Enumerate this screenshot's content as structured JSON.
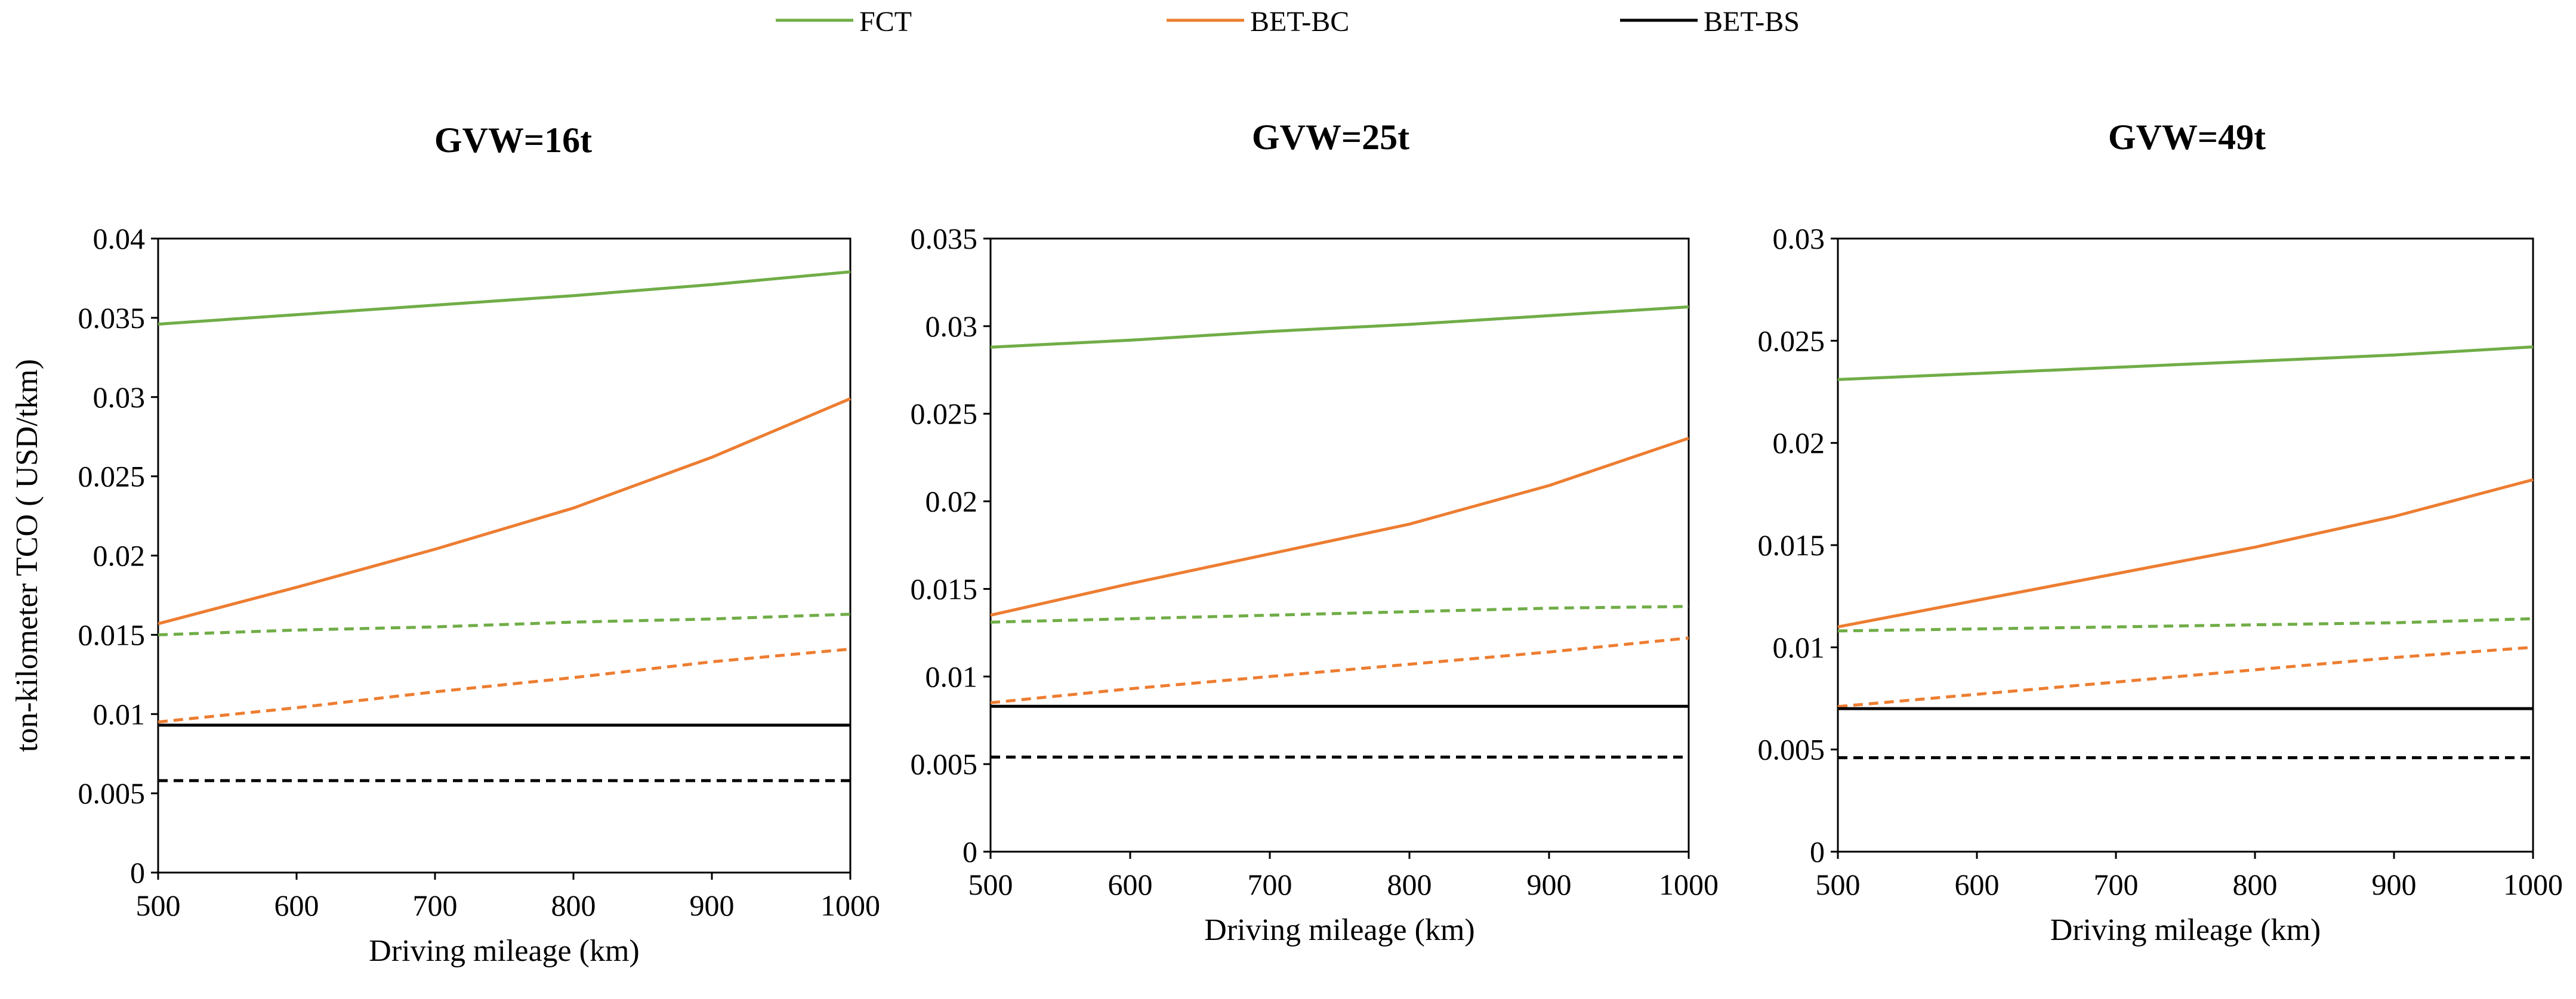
{
  "legend": [
    {
      "name": "FCT",
      "color": "#70ad47"
    },
    {
      "name": "BET-BC",
      "color": "#ed7d31"
    },
    {
      "name": "BET-BS",
      "color": "#000000"
    }
  ],
  "chart_data": [
    {
      "type": "line",
      "title": "GVW=16t",
      "xlabel": "Driving mileage (km)",
      "ylabel": "ton-kilometer TCO ( USD/tkm)",
      "xlim": [
        500,
        1000
      ],
      "ylim": [
        0,
        0.04
      ],
      "x_ticks": [
        "500",
        "600",
        "700",
        "800",
        "900",
        "1000"
      ],
      "y_ticks": [
        "0",
        "0.005",
        "0.01",
        "0.015",
        "0.02",
        "0.025",
        "0.03",
        "0.035",
        "0.04"
      ],
      "x": [
        500,
        600,
        700,
        800,
        900,
        1000
      ],
      "series": [
        {
          "name": "FCT",
          "style": "solid",
          "color": "#70ad47",
          "values": [
            0.0346,
            0.0352,
            0.0358,
            0.0364,
            0.0371,
            0.0379
          ]
        },
        {
          "name": "BET-BC",
          "style": "solid",
          "color": "#ed7d31",
          "values": [
            0.0157,
            0.018,
            0.0204,
            0.023,
            0.0262,
            0.0299
          ]
        },
        {
          "name": "BET-BS",
          "style": "solid",
          "color": "#000000",
          "values": [
            0.0093,
            0.0093,
            0.0093,
            0.0093,
            0.0093,
            0.0093
          ]
        },
        {
          "name": "FCT",
          "style": "dashed",
          "color": "#70ad47",
          "values": [
            0.015,
            0.0153,
            0.0155,
            0.0158,
            0.016,
            0.0163
          ]
        },
        {
          "name": "BET-BC",
          "style": "dashed",
          "color": "#ed7d31",
          "values": [
            0.0095,
            0.0104,
            0.0114,
            0.0123,
            0.0133,
            0.0141
          ]
        },
        {
          "name": "BET-BS",
          "style": "dashed",
          "color": "#000000",
          "values": [
            0.0058,
            0.0058,
            0.0058,
            0.0058,
            0.0058,
            0.0058
          ]
        }
      ]
    },
    {
      "type": "line",
      "title": "GVW=25t",
      "xlabel": "Driving mileage (km)",
      "ylabel": "",
      "xlim": [
        500,
        1000
      ],
      "ylim": [
        0,
        0.035
      ],
      "x_ticks": [
        "500",
        "600",
        "700",
        "800",
        "900",
        "1000"
      ],
      "y_ticks": [
        "0",
        "0.005",
        "0.01",
        "0.015",
        "0.02",
        "0.025",
        "0.03",
        "0.035"
      ],
      "x": [
        500,
        600,
        700,
        800,
        900,
        1000
      ],
      "series": [
        {
          "name": "FCT",
          "style": "solid",
          "color": "#70ad47",
          "values": [
            0.0288,
            0.0292,
            0.0297,
            0.0301,
            0.0306,
            0.0311
          ]
        },
        {
          "name": "BET-BC",
          "style": "solid",
          "color": "#ed7d31",
          "values": [
            0.0135,
            0.0153,
            0.017,
            0.0187,
            0.0209,
            0.0236
          ]
        },
        {
          "name": "BET-BS",
          "style": "solid",
          "color": "#000000",
          "values": [
            0.0083,
            0.0083,
            0.0083,
            0.0083,
            0.0083,
            0.0083
          ]
        },
        {
          "name": "FCT",
          "style": "dashed",
          "color": "#70ad47",
          "values": [
            0.0131,
            0.0133,
            0.0135,
            0.0137,
            0.0139,
            0.014
          ]
        },
        {
          "name": "BET-BC",
          "style": "dashed",
          "color": "#ed7d31",
          "values": [
            0.0085,
            0.0093,
            0.01,
            0.0107,
            0.0114,
            0.0122
          ]
        },
        {
          "name": "BET-BS",
          "style": "dashed",
          "color": "#000000",
          "values": [
            0.0054,
            0.0054,
            0.0054,
            0.0054,
            0.0054,
            0.0054
          ]
        }
      ]
    },
    {
      "type": "line",
      "title": "GVW=49t",
      "xlabel": "Driving mileage (km)",
      "ylabel": "",
      "xlim": [
        500,
        1000
      ],
      "ylim": [
        0,
        0.03
      ],
      "x_ticks": [
        "500",
        "600",
        "700",
        "800",
        "900",
        "1000"
      ],
      "y_ticks": [
        "0",
        "0.005",
        "0.01",
        "0.015",
        "0.02",
        "0.025",
        "0.03"
      ],
      "x": [
        500,
        600,
        700,
        800,
        900,
        1000
      ],
      "series": [
        {
          "name": "FCT",
          "style": "solid",
          "color": "#70ad47",
          "values": [
            0.0231,
            0.0234,
            0.0237,
            0.024,
            0.0243,
            0.0247
          ]
        },
        {
          "name": "BET-BC",
          "style": "solid",
          "color": "#ed7d31",
          "values": [
            0.011,
            0.0123,
            0.0136,
            0.0149,
            0.0164,
            0.0182
          ]
        },
        {
          "name": "BET-BS",
          "style": "solid",
          "color": "#000000",
          "values": [
            0.007,
            0.007,
            0.007,
            0.007,
            0.007,
            0.007
          ]
        },
        {
          "name": "FCT",
          "style": "dashed",
          "color": "#70ad47",
          "values": [
            0.0108,
            0.0109,
            0.011,
            0.0111,
            0.0112,
            0.0114
          ]
        },
        {
          "name": "BET-BC",
          "style": "dashed",
          "color": "#ed7d31",
          "values": [
            0.0071,
            0.0077,
            0.0083,
            0.0089,
            0.0095,
            0.01
          ]
        },
        {
          "name": "BET-BS",
          "style": "dashed",
          "color": "#000000",
          "values": [
            0.0046,
            0.0046,
            0.0046,
            0.0046,
            0.0046,
            0.0046
          ]
        }
      ]
    }
  ]
}
